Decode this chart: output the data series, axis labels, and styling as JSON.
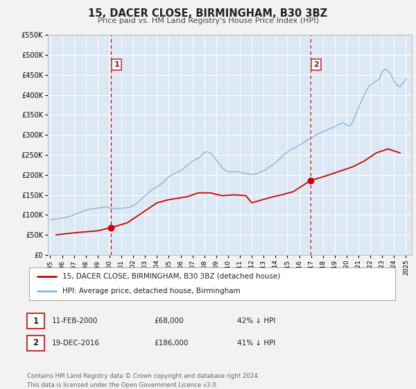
{
  "title": "15, DACER CLOSE, BIRMINGHAM, B30 3BZ",
  "subtitle": "Price paid vs. HM Land Registry's House Price Index (HPI)",
  "fig_bg_color": "#f2f2f2",
  "plot_bg_color": "#dde8f5",
  "grid_color": "#ffffff",
  "red_line_color": "#cc0000",
  "blue_line_color": "#8ab4d8",
  "marker_color": "#cc0000",
  "vline_color": "#cc0000",
  "ylim": [
    0,
    550000
  ],
  "yticks": [
    0,
    50000,
    100000,
    150000,
    200000,
    250000,
    300000,
    350000,
    400000,
    450000,
    500000,
    550000
  ],
  "ytick_labels": [
    "£0",
    "£50K",
    "£100K",
    "£150K",
    "£200K",
    "£250K",
    "£300K",
    "£350K",
    "£400K",
    "£450K",
    "£500K",
    "£550K"
  ],
  "xlim_start": 1994.8,
  "xlim_end": 2025.5,
  "xticks": [
    1995,
    1996,
    1997,
    1998,
    1999,
    2000,
    2001,
    2002,
    2003,
    2004,
    2005,
    2006,
    2007,
    2008,
    2009,
    2010,
    2011,
    2012,
    2013,
    2014,
    2015,
    2016,
    2017,
    2018,
    2019,
    2020,
    2021,
    2022,
    2023,
    2024,
    2025
  ],
  "marker1_x": 2000.12,
  "marker1_y": 68000,
  "marker2_x": 2016.96,
  "marker2_y": 186000,
  "vline1_x": 2000.12,
  "vline2_x": 2016.96,
  "legend_label_red": "15, DACER CLOSE, BIRMINGHAM, B30 3BZ (detached house)",
  "legend_label_blue": "HPI: Average price, detached house, Birmingham",
  "table_row1": [
    "1",
    "11-FEB-2000",
    "£68,000",
    "42% ↓ HPI"
  ],
  "table_row2": [
    "2",
    "19-DEC-2016",
    "£186,000",
    "41% ↓ HPI"
  ],
  "footer_text": "Contains HM Land Registry data © Crown copyright and database right 2024.\nThis data is licensed under the Open Government Licence v3.0.",
  "hpi_x": [
    1995.0,
    1995.25,
    1995.5,
    1995.75,
    1996.0,
    1996.25,
    1996.5,
    1996.75,
    1997.0,
    1997.25,
    1997.5,
    1997.75,
    1998.0,
    1998.25,
    1998.5,
    1998.75,
    1999.0,
    1999.25,
    1999.5,
    1999.75,
    2000.0,
    2000.25,
    2000.5,
    2000.75,
    2001.0,
    2001.25,
    2001.5,
    2001.75,
    2002.0,
    2002.25,
    2002.5,
    2002.75,
    2003.0,
    2003.25,
    2003.5,
    2003.75,
    2004.0,
    2004.25,
    2004.5,
    2004.75,
    2005.0,
    2005.25,
    2005.5,
    2005.75,
    2006.0,
    2006.25,
    2006.5,
    2006.75,
    2007.0,
    2007.25,
    2007.5,
    2007.75,
    2008.0,
    2008.25,
    2008.5,
    2008.75,
    2009.0,
    2009.25,
    2009.5,
    2009.75,
    2010.0,
    2010.25,
    2010.5,
    2010.75,
    2011.0,
    2011.25,
    2011.5,
    2011.75,
    2012.0,
    2012.25,
    2012.5,
    2012.75,
    2013.0,
    2013.25,
    2013.5,
    2013.75,
    2014.0,
    2014.25,
    2014.5,
    2014.75,
    2015.0,
    2015.25,
    2015.5,
    2015.75,
    2016.0,
    2016.25,
    2016.5,
    2016.75,
    2017.0,
    2017.25,
    2017.5,
    2017.75,
    2018.0,
    2018.25,
    2018.5,
    2018.75,
    2019.0,
    2019.25,
    2019.5,
    2019.75,
    2020.0,
    2020.25,
    2020.5,
    2020.75,
    2021.0,
    2021.25,
    2021.5,
    2021.75,
    2022.0,
    2022.25,
    2022.5,
    2022.75,
    2023.0,
    2023.25,
    2023.5,
    2023.75,
    2024.0,
    2024.25,
    2024.5,
    2024.75,
    2025.0
  ],
  "hpi_y": [
    88000,
    89000,
    90000,
    91000,
    92000,
    93000,
    95000,
    97000,
    100000,
    103000,
    106000,
    109000,
    112000,
    114000,
    115000,
    116000,
    117000,
    118000,
    119000,
    120000,
    117000,
    116000,
    116000,
    116000,
    116000,
    117000,
    118000,
    120000,
    123000,
    128000,
    134000,
    141000,
    148000,
    155000,
    161000,
    166000,
    170000,
    175000,
    181000,
    188000,
    195000,
    200000,
    204000,
    207000,
    210000,
    216000,
    222000,
    228000,
    234000,
    238000,
    242000,
    248000,
    256000,
    258000,
    255000,
    248000,
    238000,
    228000,
    218000,
    212000,
    208000,
    207000,
    208000,
    208000,
    207000,
    205000,
    203000,
    202000,
    201000,
    202000,
    204000,
    207000,
    210000,
    215000,
    220000,
    225000,
    230000,
    237000,
    244000,
    252000,
    257000,
    262000,
    266000,
    270000,
    274000,
    279000,
    284000,
    288000,
    292000,
    297000,
    301000,
    305000,
    308000,
    311000,
    315000,
    318000,
    321000,
    325000,
    328000,
    330000,
    325000,
    322000,
    332000,
    350000,
    368000,
    385000,
    400000,
    415000,
    425000,
    430000,
    435000,
    440000,
    458000,
    465000,
    460000,
    450000,
    435000,
    425000,
    420000,
    430000,
    440000
  ],
  "price_paid_x": [
    1995.5,
    1997.0,
    1999.0,
    2000.12,
    2001.5,
    2002.5,
    2003.5,
    2004.0,
    2005.0,
    2006.5,
    2007.5,
    2008.5,
    2009.5,
    2010.5,
    2011.5,
    2012.0,
    2013.5,
    2014.5,
    2015.5,
    2016.96,
    2018.0,
    2019.5,
    2020.5,
    2021.5,
    2022.5,
    2023.5,
    2024.5
  ],
  "price_paid_y": [
    50000,
    55000,
    60000,
    68000,
    80000,
    100000,
    120000,
    130000,
    138000,
    145000,
    155000,
    155000,
    148000,
    150000,
    148000,
    130000,
    143000,
    150000,
    158000,
    186000,
    195000,
    210000,
    220000,
    235000,
    255000,
    265000,
    255000
  ]
}
